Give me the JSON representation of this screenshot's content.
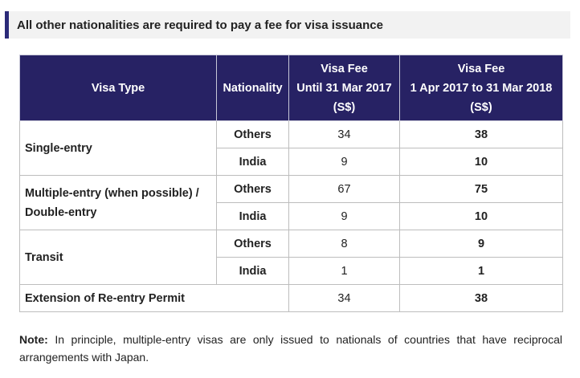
{
  "header": {
    "text": "All other nationalities are required to pay a fee for visa issuance"
  },
  "table": {
    "columns": {
      "visa_type": "Visa Type",
      "nationality": "Nationality",
      "fee_old": [
        "Visa Fee",
        "Until 31 Mar 2017",
        "(S$)"
      ],
      "fee_new": [
        "Visa Fee",
        "1 Apr 2017 to 31 Mar 2018",
        "(S$)"
      ]
    },
    "groups": [
      {
        "type_lines": [
          "Single-entry"
        ],
        "rows": [
          {
            "nationality": "Others",
            "fee_old": "34",
            "fee_new": "38"
          },
          {
            "nationality": "India",
            "fee_old": "9",
            "fee_new": "10"
          }
        ]
      },
      {
        "type_lines": [
          "Multiple-entry (when possible) /",
          "Double-entry"
        ],
        "rows": [
          {
            "nationality": "Others",
            "fee_old": "67",
            "fee_new": "75"
          },
          {
            "nationality": "India",
            "fee_old": "9",
            "fee_new": "10"
          }
        ]
      },
      {
        "type_lines": [
          "Transit"
        ],
        "rows": [
          {
            "nationality": "Others",
            "fee_old": "8",
            "fee_new": "9"
          },
          {
            "nationality": "India",
            "fee_old": "1",
            "fee_new": "1"
          }
        ]
      }
    ],
    "extension": {
      "type": "Extension of Re-entry Permit",
      "fee_old": "34",
      "fee_new": "38"
    }
  },
  "note": {
    "label": "Note:",
    "text": " In principle, multiple-entry visas are only issued to nationals of countries that have reciprocal arrangements with Japan."
  }
}
